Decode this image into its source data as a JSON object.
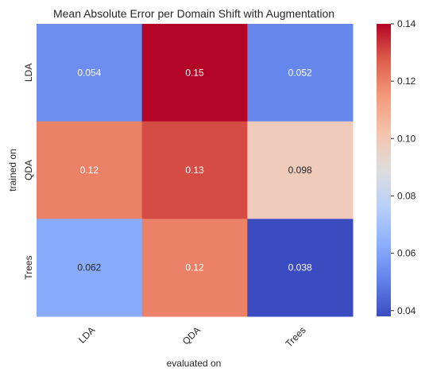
{
  "chart_data": {
    "type": "heatmap",
    "title": "Mean Absolute Error per Domain Shift with Augmentation",
    "xlabel": "evaluated on",
    "ylabel": "trained on",
    "x_categories": [
      "LDA",
      "QDA",
      "Trees"
    ],
    "y_categories": [
      "LDA",
      "QDA",
      "Trees"
    ],
    "values": [
      [
        0.054,
        0.15,
        0.052
      ],
      [
        0.12,
        0.13,
        0.098
      ],
      [
        0.062,
        0.12,
        0.038
      ]
    ],
    "annotations": [
      [
        "0.054",
        "0.15",
        "0.052"
      ],
      [
        "0.12",
        "0.13",
        "0.098"
      ],
      [
        "0.062",
        "0.12",
        "0.038"
      ]
    ],
    "colormap": "coolwarm",
    "color_range": [
      0.038,
      0.14
    ],
    "colorbar_ticks": [
      0.04,
      0.06,
      0.08,
      0.1,
      0.12,
      0.14
    ],
    "colorbar_tick_labels": [
      "0.04",
      "0.06",
      "0.08",
      "0.10",
      "0.12",
      "0.14"
    ],
    "colorbar_position": "right",
    "grid": false
  }
}
